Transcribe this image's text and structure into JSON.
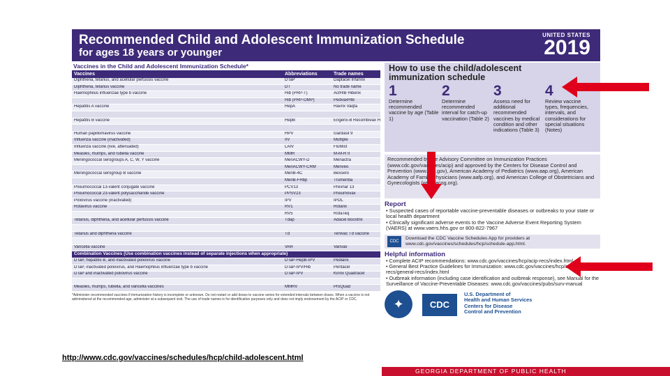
{
  "header": {
    "title": "Recommended Child and Adolescent Immunization Schedule",
    "subtitle": "for ages 18 years or younger",
    "country": "UNITED STATES",
    "year": "2019"
  },
  "vaccine_table": {
    "section_title": "Vaccines in the Child and Adolescent Immunization Schedule*",
    "columns": [
      "Vaccines",
      "Abbreviations",
      "Trade names"
    ],
    "rows": [
      [
        "Diphtheria, tetanus, and acellular pertussis vaccine",
        "DTaP",
        "Daptacel Infanrix"
      ],
      [
        "Diphtheria, tetanus vaccine",
        "DT",
        "No trade name"
      ],
      [
        "Haemophilus influenzae type b vaccine",
        "Hib (PRP-T)",
        "ActHIB Hiberix"
      ],
      [
        "",
        "Hib (PRP-OMP)",
        "PedvaxHIB"
      ],
      [
        "Hepatitis A vaccine",
        "HepA",
        "Havrix Vaqta"
      ],
      [
        "",
        "",
        ""
      ],
      [
        "Hepatitis B vaccine",
        "HepB",
        "Engerix-B Recombivax HB"
      ],
      [
        "",
        "",
        ""
      ],
      [
        "Human papillomavirus vaccine",
        "HPV",
        "Gardasil 9"
      ],
      [
        "Influenza vaccine (inactivated)",
        "IIV",
        "Multiple"
      ],
      [
        "Influenza vaccine (live, attenuated)",
        "LAIV",
        "FluMist"
      ],
      [
        "Measles, mumps, and rubella vaccine",
        "MMR",
        "M-M-R II"
      ],
      [
        "Meningococcal serogroups A, C, W, Y vaccine",
        "MenACWY-D",
        "Menactra"
      ],
      [
        "",
        "MenACWY-CRM",
        "Menveo"
      ],
      [
        "Meningococcal serogroup B vaccine",
        "MenB-4C",
        "Bexsero"
      ],
      [
        "",
        "MenB-FHbp",
        "Trumenba"
      ],
      [
        "Pneumococcal 13-valent conjugate vaccine",
        "PCV13",
        "Prevnar 13"
      ],
      [
        "Pneumococcal 23-valent polysaccharide vaccine",
        "PPSV23",
        "Pneumovax"
      ],
      [
        "Poliovirus vaccine (inactivated)",
        "IPV",
        "IPOL"
      ],
      [
        "Rotavirus vaccine",
        "RV1",
        "Rotarix"
      ],
      [
        "",
        "RV5",
        "RotaTeq"
      ],
      [
        "Tetanus, diphtheria, and acellular pertussis vaccine",
        "Tdap",
        "Adacel Boostrix"
      ],
      [
        "",
        "",
        ""
      ],
      [
        "Tetanus and diphtheria vaccine",
        "Td",
        "Tenivac Td vaccine"
      ],
      [
        "",
        "",
        ""
      ],
      [
        "Varicella vaccine",
        "VAR",
        "Varivax"
      ]
    ],
    "combo_header": "Combination Vaccines (Use combination vaccines instead of separate injections when appropriate)",
    "combo_rows": [
      [
        "DTaP, hepatitis B, and inactivated poliovirus vaccine",
        "DTaP-HepB-IPV",
        "Pediarix"
      ],
      [
        "DTaP, inactivated poliovirus, and Haemophilus influenzae type b vaccine",
        "DTaP-IPV/Hib",
        "Pentacel"
      ],
      [
        "DTaP and inactivated poliovirus vaccine",
        "DTaP-IPV",
        "Kinrix Quadracel"
      ],
      [
        "",
        "",
        ""
      ],
      [
        "Measles, mumps, rubella, and varicella vaccines",
        "MMRV",
        "ProQuad"
      ]
    ],
    "footnote": "*Administer recommended vaccines if immunization history is incomplete or unknown. Do not restart or add doses to vaccine series for extended intervals between doses. When a vaccine is not administered at the recommended age, administer at a subsequent visit. The use of trade names is for identification purposes only and does not imply endorsement by the ACIP or CDC."
  },
  "howto": {
    "heading": "How to use the child/adolescent immunization schedule",
    "steps": [
      {
        "num": "1",
        "text": "Determine recommended vaccine by age (Table 1)"
      },
      {
        "num": "2",
        "text": "Determine recommended interval for catch-up vaccination (Table 2)"
      },
      {
        "num": "3",
        "text": "Assess need for additional recommended vaccines by medical condition and other indications (Table 3)"
      },
      {
        "num": "4",
        "text": "Review vaccine types, frequencies, intervals, and considerations for special situations (Notes)"
      }
    ]
  },
  "acip": "Recommended by the Advisory Committee on Immunization Practices (www.cdc.gov/vaccines/acip) and approved by the Centers for Disease Control and Prevention (www.cdc.gov), American Academy of Pediatrics (www.aap.org), American Academy of Family Physicians (www.aafp.org), and American College of Obstetricians and Gynecologists (www.acog.org).",
  "report": {
    "heading": "Report",
    "items": [
      "• Suspected cases of reportable vaccine-preventable diseases or outbreaks to your state or local health department",
      "• Clinically significant adverse events to the Vaccine Adverse Event Reporting System (VAERS) at www.vaers.hhs.gov or 800-822-7967"
    ]
  },
  "app": {
    "icon_label": "CDC",
    "text": "Download the CDC Vaccine Schedules App for providers at www.cdc.gov/vaccines/schedules/hcp/schedule-app.html."
  },
  "help": {
    "heading": "Helpful information",
    "items": [
      "• Complete ACIP recommendations: www.cdc.gov/vaccines/hcp/acip-recs/index.html",
      "• General Best Practice Guidelines for Immunization: www.cdc.gov/vaccines/hcp/acip-recs/general-recs/index.html",
      "• Outbreak information (including case identification and outbreak response), see Manual for the Surveillance of Vaccine-Preventable Diseases: www.cdc.gov/vaccines/pubs/surv-manual"
    ]
  },
  "logos": {
    "cdc": "CDC",
    "dept_lines": [
      "U.S. Department of",
      "Health and Human Services",
      "Centers for Disease",
      "Control and Prevention"
    ]
  },
  "link": "http://www.cdc.gov/vaccines/schedules/hcp/child-adolescent.html",
  "footer": "GEORGIA DEPARTMENT OF PUBLIC HEALTH",
  "colors": {
    "brand_purple": "#3d2a78",
    "arrow_red": "#e0001b",
    "footer_red": "#c8102e",
    "cdc_blue": "#1d4f91"
  }
}
